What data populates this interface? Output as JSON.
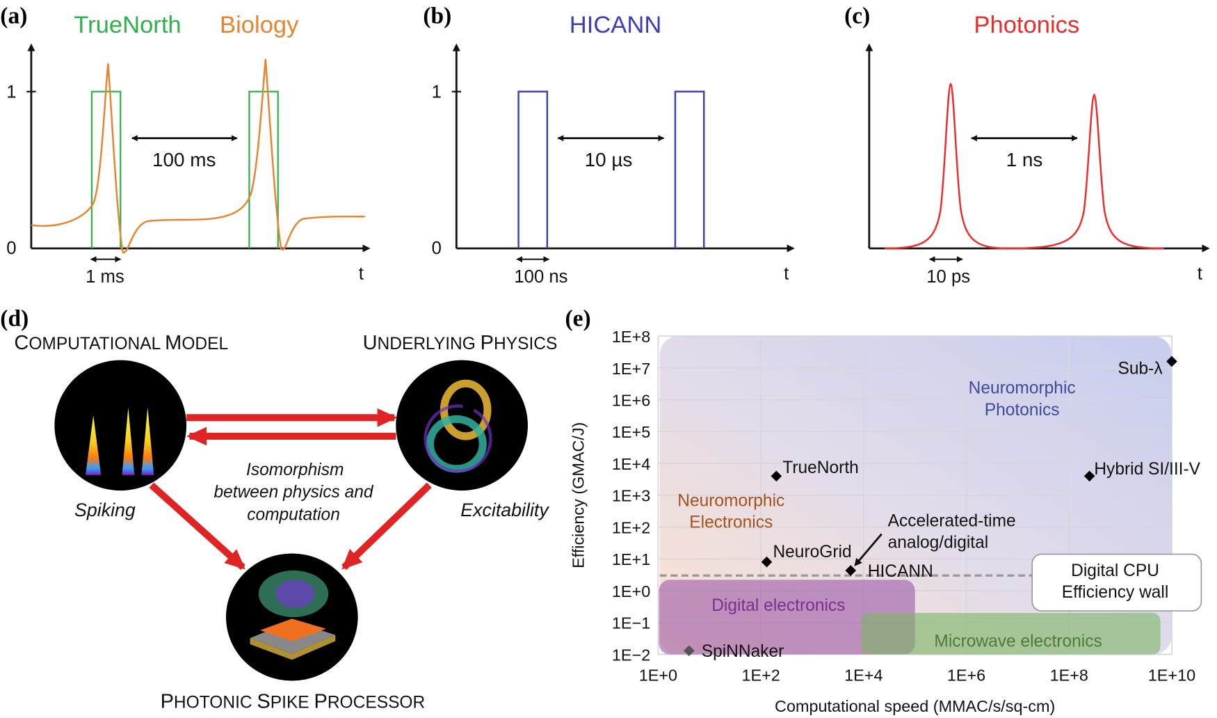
{
  "panels": {
    "a": {
      "letter": "(a)",
      "legend": [
        {
          "label": "TrueNorth",
          "color": "#2db24a"
        },
        {
          "label": "Biology",
          "color": "#e8832f"
        }
      ],
      "y_ticks": [
        "0",
        "1"
      ],
      "x_axis_label": "t",
      "interval_label": "100 ms",
      "width_label": "1 ms"
    },
    "b": {
      "letter": "(b)",
      "title": "HICANN",
      "color": "#3b3fb5",
      "y_ticks": [
        "0",
        "1"
      ],
      "x_axis_label": "t",
      "interval_label": "10 µs",
      "width_label": "100 ns"
    },
    "c": {
      "letter": "(c)",
      "title": "Photonics",
      "color": "#ee2b2b",
      "x_axis_label": "t",
      "interval_label": "1 ns",
      "width_label": "10 ps"
    },
    "d": {
      "letter": "(d)",
      "nodes": {
        "model": {
          "title_cap": "C",
          "title_rest": "OMPUTATIONAL ",
          "title_cap2": "M",
          "title_rest2": "ODEL",
          "caption": "Spiking"
        },
        "physics": {
          "title_cap": "U",
          "title_rest": "NDERLYING ",
          "title_cap2": "P",
          "title_rest2": "HYSICS",
          "caption": "Excitability"
        },
        "processor": {
          "title_cap": "P",
          "title_rest": "HOTONIC ",
          "title_cap2": "S",
          "title_rest2": "PIKE ",
          "title_cap3": "P",
          "title_rest3": "ROCESSOR"
        }
      },
      "center_text": [
        "Isomorphism",
        "between physics and",
        "computation"
      ],
      "arrow_color": "#e02424"
    },
    "e": {
      "letter": "(e)"
    }
  },
  "chart_data": {
    "type": "scatter",
    "xlabel": "Computational speed (MMAC/s/sq-cm)",
    "ylabel": "Efficiency (GMAC/J)",
    "x_scale": "log",
    "y_scale": "log",
    "xlim": [
      1,
      10000000000.0
    ],
    "ylim": [
      0.01,
      100000000.0
    ],
    "x_ticks": [
      "1E+0",
      "1E+2",
      "1E+4",
      "1E+6",
      "1E+8",
      "1E+10"
    ],
    "y_ticks": [
      "1E+8",
      "1E+7",
      "1E+6",
      "1E+5",
      "1E+4",
      "1E+3",
      "1E+2",
      "1E+1",
      "1E+0",
      "1E−1",
      "1E−2"
    ],
    "grid": true,
    "points": [
      {
        "label": "Sub-λ",
        "x": 10000000000.0,
        "y": 16000000.0
      },
      {
        "label": "Hybrid SI/III-V",
        "x": 250000000.0,
        "y": 4000
      },
      {
        "label": "TrueNorth",
        "x": 200,
        "y": 4000
      },
      {
        "label": "NeuroGrid",
        "x": 130,
        "y": 8
      },
      {
        "label": "HICANN",
        "x": 5600,
        "y": 4.3
      },
      {
        "label": "SpiNNaker",
        "x": 4,
        "y": 0.013
      }
    ],
    "regions": [
      {
        "label": "Neuromorphic Photonics",
        "color": "#3f4a9a"
      },
      {
        "label": "Neuromorphic Electronics",
        "color": "#a4521c"
      },
      {
        "label": "Digital electronics",
        "color": "#7a2f8f",
        "x": [
          1,
          100000.0
        ],
        "y": [
          0.01,
          2.2
        ]
      },
      {
        "label": "Microwave electronics",
        "color": "#4d7a3a",
        "x": [
          9000.0,
          6000000000.0
        ],
        "y": [
          0.01,
          0.2
        ]
      }
    ],
    "annotations": [
      {
        "text": [
          "Accelerated-time",
          "analog/digital"
        ],
        "points_to": "HICANN"
      },
      {
        "text": [
          "Digital CPU",
          "Efficiency wall"
        ],
        "y": 3
      }
    ]
  }
}
